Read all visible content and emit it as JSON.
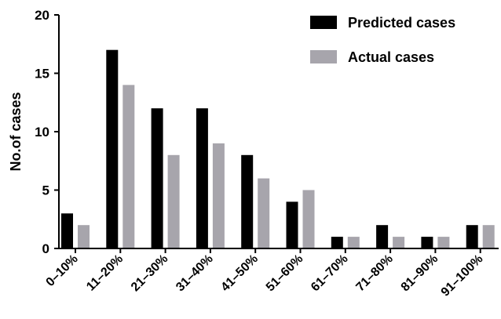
{
  "chart_data": {
    "type": "bar",
    "title": "",
    "xlabel": "",
    "ylabel": "No.of cases",
    "ylim": [
      0,
      20
    ],
    "yticks": [
      0,
      5,
      10,
      15,
      20
    ],
    "grid": false,
    "legend_position": "top-right",
    "categories": [
      "0–10%",
      "11–20%",
      "21–30%",
      "31–40%",
      "41–50%",
      "51–60%",
      "61–70%",
      "71–80%",
      "81–90%",
      "91–100%"
    ],
    "series": [
      {
        "name": "Predicted cases",
        "color": "#000000",
        "values": [
          3,
          17,
          12,
          12,
          8,
          4,
          1,
          2,
          1,
          2
        ]
      },
      {
        "name": "Actual cases",
        "color": "#a7a5ac",
        "values": [
          2,
          14,
          8,
          9,
          6,
          5,
          1,
          1,
          1,
          2
        ]
      }
    ]
  }
}
